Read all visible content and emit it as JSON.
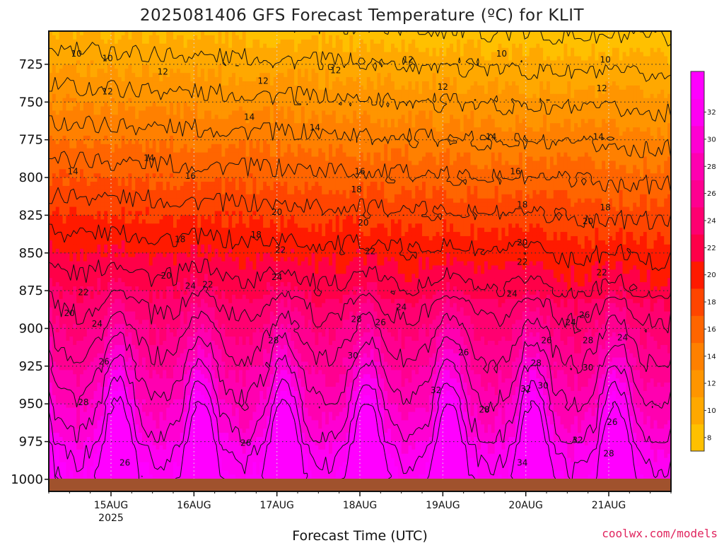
{
  "chart_data": {
    "type": "heatmap",
    "title": "2025081406 GFS Forecast Temperature (ºC) for KLIT",
    "xlabel": "Forecast Time (UTC)",
    "ylabel": "",
    "credit": "coolwx.com/models",
    "y_axis": {
      "ticks": [
        "725",
        "750",
        "775",
        "800",
        "825",
        "850",
        "875",
        "900",
        "925",
        "950",
        "975",
        "1000"
      ],
      "values": [
        725,
        750,
        775,
        800,
        825,
        850,
        875,
        900,
        925,
        950,
        975,
        1000
      ],
      "range": [
        703,
        1008
      ],
      "inverted": true
    },
    "x_axis": {
      "ticks": [
        "15AUG",
        "16AUG",
        "17AUG",
        "18AUG",
        "19AUG",
        "20AUG",
        "21AUG"
      ],
      "tick_year": "2025",
      "range": [
        "2025-08-14T06:00Z",
        "2025-08-21T18:00Z"
      ]
    },
    "colorbar": {
      "ticks": [
        "8",
        "10",
        "12",
        "14",
        "16",
        "18",
        "20",
        "22",
        "24",
        "26",
        "28",
        "30",
        "32"
      ],
      "bands": [
        {
          "from": 7,
          "to": 9,
          "color": "#ffc000"
        },
        {
          "from": 9,
          "to": 11,
          "color": "#ffa800"
        },
        {
          "from": 11,
          "to": 13,
          "color": "#ff9500"
        },
        {
          "from": 13,
          "to": 15,
          "color": "#ff8000"
        },
        {
          "from": 15,
          "to": 17,
          "color": "#ff6500"
        },
        {
          "from": 17,
          "to": 19,
          "color": "#ff4500"
        },
        {
          "from": 19,
          "to": 21,
          "color": "#ff1a00"
        },
        {
          "from": 21,
          "to": 23,
          "color": "#ff0048"
        },
        {
          "from": 23,
          "to": 25,
          "color": "#ff0070"
        },
        {
          "from": 25,
          "to": 27,
          "color": "#ff0090"
        },
        {
          "from": 27,
          "to": 29,
          "color": "#ff00b0"
        },
        {
          "from": 29,
          "to": 31,
          "color": "#ff00d2"
        },
        {
          "from": 31,
          "to": 33,
          "color": "#ff00f2"
        },
        {
          "from": 33,
          "to": 35,
          "color": "#ff00ff"
        }
      ]
    },
    "contour_interval": 2,
    "contour_labels": [
      {
        "t": "2025-08-14T14:00Z",
        "p": 718,
        "v": "10"
      },
      {
        "t": "2025-08-14T23:00Z",
        "p": 721,
        "v": "10"
      },
      {
        "t": "2025-08-14T23:00Z",
        "p": 743,
        "v": "12"
      },
      {
        "t": "2025-08-14T13:00Z",
        "p": 796,
        "v": "14"
      },
      {
        "t": "2025-08-14T12:00Z",
        "p": 890,
        "v": "20"
      },
      {
        "t": "2025-08-14T16:00Z",
        "p": 876,
        "v": "22"
      },
      {
        "t": "2025-08-14T20:00Z",
        "p": 897,
        "v": "24"
      },
      {
        "t": "2025-08-14T22:00Z",
        "p": 922,
        "v": "26"
      },
      {
        "t": "2025-08-14T16:00Z",
        "p": 949,
        "v": "28"
      },
      {
        "t": "2025-08-15T04:00Z",
        "p": 989,
        "v": "26"
      },
      {
        "t": "2025-08-15T15:00Z",
        "p": 730,
        "v": "12"
      },
      {
        "t": "2025-08-15T11:00Z",
        "p": 787,
        "v": "14"
      },
      {
        "t": "2025-08-15T23:00Z",
        "p": 799,
        "v": "16"
      },
      {
        "t": "2025-08-15T20:00Z",
        "p": 841,
        "v": "18"
      },
      {
        "t": "2025-08-15T16:00Z",
        "p": 865,
        "v": "20"
      },
      {
        "t": "2025-08-15T23:00Z",
        "p": 872,
        "v": "24"
      },
      {
        "t": "2025-08-16T04:00Z",
        "p": 871,
        "v": "22"
      },
      {
        "t": "2025-08-16T15:00Z",
        "p": 976,
        "v": "26"
      },
      {
        "t": "2025-08-16T16:00Z",
        "p": 760,
        "v": "14"
      },
      {
        "t": "2025-08-16T20:00Z",
        "p": 736,
        "v": "12"
      },
      {
        "t": "2025-08-16T18:00Z",
        "p": 838,
        "v": "18"
      },
      {
        "t": "2025-08-17T00:00Z",
        "p": 823,
        "v": "20"
      },
      {
        "t": "2025-08-17T01:00Z",
        "p": 848,
        "v": "22"
      },
      {
        "t": "2025-08-17T00:00Z",
        "p": 866,
        "v": "24"
      },
      {
        "t": "2025-08-16T23:00Z",
        "p": 908,
        "v": "28"
      },
      {
        "t": "2025-08-17T11:00Z",
        "p": 767,
        "v": "14"
      },
      {
        "t": "2025-08-17T17:00Z",
        "p": 729,
        "v": "12"
      },
      {
        "t": "2025-08-18T00:00Z",
        "p": 796,
        "v": "16"
      },
      {
        "t": "2025-08-17T23:00Z",
        "p": 808,
        "v": "18"
      },
      {
        "t": "2025-08-18T01:00Z",
        "p": 830,
        "v": "20"
      },
      {
        "t": "2025-08-18T03:00Z",
        "p": 849,
        "v": "22"
      },
      {
        "t": "2025-08-18T12:00Z",
        "p": 886,
        "v": "24"
      },
      {
        "t": "2025-08-18T06:00Z",
        "p": 896,
        "v": "26"
      },
      {
        "t": "2025-08-17T23:00Z",
        "p": 894,
        "v": "28"
      },
      {
        "t": "2025-08-17T22:00Z",
        "p": 918,
        "v": "30"
      },
      {
        "t": "2025-08-18T14:00Z",
        "p": 722,
        "v": "12"
      },
      {
        "t": "2025-08-19T00:00Z",
        "p": 740,
        "v": "12"
      },
      {
        "t": "2025-08-19T12:00Z",
        "p": 954,
        "v": "28"
      },
      {
        "t": "2025-08-19T06:00Z",
        "p": 916,
        "v": "26"
      },
      {
        "t": "2025-08-18T22:00Z",
        "p": 941,
        "v": "32"
      },
      {
        "t": "2025-08-19T17:00Z",
        "p": 718,
        "v": "10"
      },
      {
        "t": "2025-08-19T14:00Z",
        "p": 773,
        "v": "14"
      },
      {
        "t": "2025-08-19T21:00Z",
        "p": 796,
        "v": "16"
      },
      {
        "t": "2025-08-19T23:00Z",
        "p": 818,
        "v": "18"
      },
      {
        "t": "2025-08-19T23:00Z",
        "p": 843,
        "v": "20"
      },
      {
        "t": "2025-08-19T23:00Z",
        "p": 856,
        "v": "22"
      },
      {
        "t": "2025-08-19T20:00Z",
        "p": 877,
        "v": "24"
      },
      {
        "t": "2025-08-19T23:00Z",
        "p": 989,
        "v": "34"
      },
      {
        "t": "2025-08-20T00:00Z",
        "p": 940,
        "v": "32"
      },
      {
        "t": "2025-08-20T03:00Z",
        "p": 923,
        "v": "28"
      },
      {
        "t": "2025-08-20T05:00Z",
        "p": 938,
        "v": "30"
      },
      {
        "t": "2025-08-20T06:00Z",
        "p": 908,
        "v": "26"
      },
      {
        "t": "2025-08-20T13:00Z",
        "p": 896,
        "v": "24"
      },
      {
        "t": "2025-08-20T22:00Z",
        "p": 741,
        "v": "12"
      },
      {
        "t": "2025-08-20T21:00Z",
        "p": 773,
        "v": "14"
      },
      {
        "t": "2025-08-20T23:00Z",
        "p": 820,
        "v": "18"
      },
      {
        "t": "2025-08-20T18:00Z",
        "p": 829,
        "v": "20"
      },
      {
        "t": "2025-08-20T22:00Z",
        "p": 863,
        "v": "22"
      },
      {
        "t": "2025-08-20T17:00Z",
        "p": 891,
        "v": "26"
      },
      {
        "t": "2025-08-20T18:00Z",
        "p": 908,
        "v": "28"
      },
      {
        "t": "2025-08-20T18:00Z",
        "p": 926,
        "v": "30"
      },
      {
        "t": "2025-08-20T15:00Z",
        "p": 974,
        "v": "32"
      },
      {
        "t": "2025-08-21T04:00Z",
        "p": 906,
        "v": "24"
      },
      {
        "t": "2025-08-21T01:00Z",
        "p": 962,
        "v": "26"
      },
      {
        "t": "2025-08-21T00:00Z",
        "p": 983,
        "v": "28"
      },
      {
        "t": "2025-08-20T23:00Z",
        "p": 722,
        "v": "10"
      }
    ],
    "grid": true,
    "grid_style": "dotted",
    "surface_color": "#a0522d"
  }
}
